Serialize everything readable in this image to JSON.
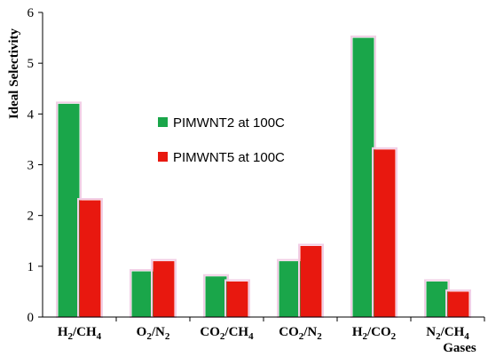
{
  "chart_data": {
    "type": "bar",
    "categories": [
      {
        "label": "H2/CH4",
        "main": "H",
        "parts": [
          {
            "t": "H"
          },
          {
            "t": "2",
            "sub": true
          },
          {
            "t": "/CH"
          },
          {
            "t": "4",
            "sub": true
          }
        ]
      },
      {
        "label": "O2/N2",
        "parts": [
          {
            "t": "O"
          },
          {
            "t": "2",
            "sub": true
          },
          {
            "t": "/N"
          },
          {
            "t": "2",
            "sub": true
          }
        ]
      },
      {
        "label": "CO2/CH4",
        "parts": [
          {
            "t": "CO"
          },
          {
            "t": "2",
            "sub": true
          },
          {
            "t": "/CH"
          },
          {
            "t": "4",
            "sub": true
          }
        ]
      },
      {
        "label": "CO2/N2",
        "parts": [
          {
            "t": "CO"
          },
          {
            "t": "2",
            "sub": true
          },
          {
            "t": "/N"
          },
          {
            "t": "2",
            "sub": true
          }
        ]
      },
      {
        "label": "H2/CO2",
        "parts": [
          {
            "t": "H"
          },
          {
            "t": "2",
            "sub": true
          },
          {
            "t": "/CO"
          },
          {
            "t": "2",
            "sub": true
          }
        ]
      },
      {
        "label": "N2/CH4",
        "parts": [
          {
            "t": "N"
          },
          {
            "t": "2",
            "sub": true
          },
          {
            "t": "/CH"
          },
          {
            "t": "4",
            "sub": true
          }
        ]
      }
    ],
    "series": [
      {
        "name": "PIMWNT2 at 100C",
        "color": "#1aa64a",
        "values": [
          4.2,
          0.9,
          0.8,
          1.1,
          5.5,
          0.7
        ]
      },
      {
        "name": "PIMWNT5 at 100C",
        "color": "#e8180f",
        "values": [
          2.3,
          1.1,
          0.7,
          1.4,
          3.3,
          0.5
        ]
      }
    ],
    "ylabel": "Ideal Selectivity",
    "xlabel": "Gases",
    "ylim": [
      0,
      6
    ],
    "yticks": [
      "0",
      "1",
      "2",
      "3",
      "4",
      "5",
      "6"
    ],
    "grid": false,
    "legend_position": "center-left"
  }
}
